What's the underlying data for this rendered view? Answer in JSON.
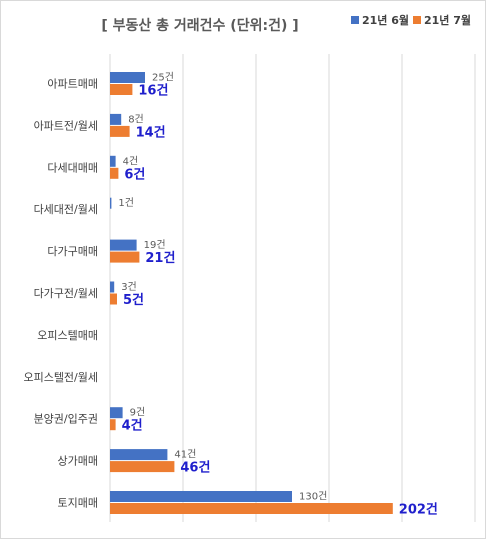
{
  "chart_data": {
    "type": "bar",
    "orientation": "horizontal",
    "title": "[ 부동산 총 거래건수 (단위:건) ]",
    "categories": [
      "아파트매매",
      "아파트전/월세",
      "다세대매매",
      "다세대전/월세",
      "다가구매매",
      "다가구전/월세",
      "오피스텔매매",
      "오피스텔전/월세",
      "분양권/입주권",
      "상가매매",
      "토지매매"
    ],
    "series": [
      {
        "name": "21년 6월",
        "color": "#4472c4",
        "values": [
          25,
          8,
          4,
          1,
          19,
          3,
          null,
          null,
          9,
          41,
          130
        ],
        "labels": [
          "25건",
          "8건",
          "4건",
          "1건",
          "19건",
          "3건",
          "",
          "",
          "9건",
          "41건",
          "130건"
        ]
      },
      {
        "name": "21년 7월",
        "color": "#ed7d31",
        "values": [
          16,
          14,
          6,
          null,
          21,
          5,
          null,
          null,
          4,
          46,
          202
        ],
        "labels": [
          "16건",
          "14건",
          "6건",
          "",
          "21건",
          "5건",
          "",
          "",
          "4건",
          "46건",
          "202건"
        ]
      }
    ],
    "xlim": [
      0,
      200
    ],
    "grid": true,
    "legend_position": "top-right"
  }
}
